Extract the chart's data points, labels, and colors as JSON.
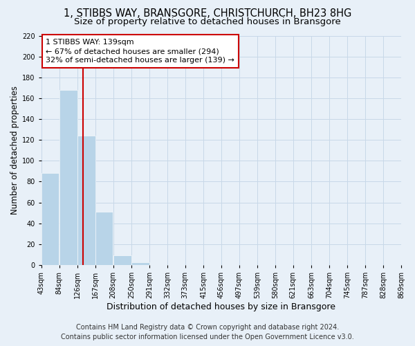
{
  "title": "1, STIBBS WAY, BRANSGORE, CHRISTCHURCH, BH23 8HG",
  "subtitle": "Size of property relative to detached houses in Bransgore",
  "xlabel": "Distribution of detached houses by size in Bransgore",
  "ylabel": "Number of detached properties",
  "bar_edges": [
    43,
    84,
    126,
    167,
    208,
    250,
    291,
    332,
    373,
    415,
    456,
    497,
    539,
    580,
    621,
    663,
    704,
    745,
    787,
    828,
    869
  ],
  "bar_heights": [
    88,
    168,
    124,
    51,
    9,
    3,
    0,
    0,
    0,
    0,
    0,
    0,
    0,
    0,
    0,
    0,
    0,
    0,
    0,
    0
  ],
  "bar_color": "#b8d4e8",
  "property_line_x": 139,
  "property_line_color": "#cc0000",
  "annotation_line1": "1 STIBBS WAY: 139sqm",
  "annotation_line2": "← 67% of detached houses are smaller (294)",
  "annotation_line3": "32% of semi-detached houses are larger (139) →",
  "annotation_box_color": "#ffffff",
  "annotation_box_edge": "#cc0000",
  "ylim": [
    0,
    220
  ],
  "yticks": [
    0,
    20,
    40,
    60,
    80,
    100,
    120,
    140,
    160,
    180,
    200,
    220
  ],
  "grid_color": "#c8d8e8",
  "background_color": "#e8f0f8",
  "footer_line1": "Contains HM Land Registry data © Crown copyright and database right 2024.",
  "footer_line2": "Contains public sector information licensed under the Open Government Licence v3.0.",
  "tick_labels": [
    "43sqm",
    "84sqm",
    "126sqm",
    "167sqm",
    "208sqm",
    "250sqm",
    "291sqm",
    "332sqm",
    "373sqm",
    "415sqm",
    "456sqm",
    "497sqm",
    "539sqm",
    "580sqm",
    "621sqm",
    "663sqm",
    "704sqm",
    "745sqm",
    "787sqm",
    "828sqm",
    "869sqm"
  ],
  "title_fontsize": 10.5,
  "subtitle_fontsize": 9.5,
  "xlabel_fontsize": 9,
  "ylabel_fontsize": 8.5,
  "tick_fontsize": 7,
  "annotation_fontsize": 8,
  "footer_fontsize": 7
}
